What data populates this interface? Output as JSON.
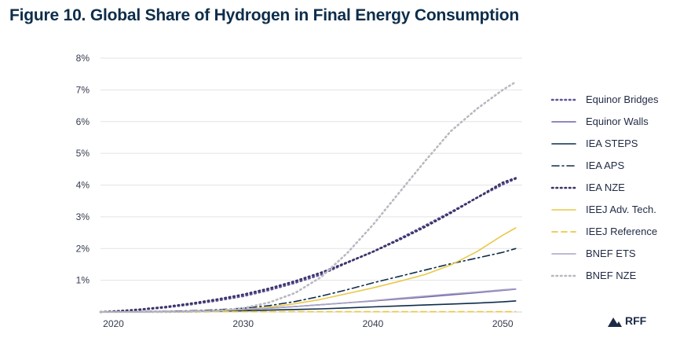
{
  "chart_data": {
    "type": "line",
    "title": "Figure 10.  Global Share of Hydrogen in Final Energy Consumption",
    "xlabel": "",
    "ylabel": "",
    "xlim": [
      2019,
      2051.5
    ],
    "ylim": [
      0,
      8
    ],
    "x_ticks": [
      2020,
      2030,
      2040,
      2050
    ],
    "y_ticks": [
      1,
      2,
      3,
      4,
      5,
      6,
      7,
      8
    ],
    "y_tick_labels": [
      "1%",
      "2%",
      "3%",
      "4%",
      "5%",
      "6%",
      "7%",
      "8%"
    ],
    "x": [
      2019,
      2020,
      2022,
      2024,
      2026,
      2028,
      2030,
      2032,
      2034,
      2036,
      2038,
      2040,
      2042,
      2044,
      2046,
      2048,
      2050,
      2051
    ],
    "series": [
      {
        "name": "Equinor Bridges",
        "color": "#5b5596",
        "style": "dot",
        "values": [
          0,
          0.02,
          0.07,
          0.14,
          0.24,
          0.36,
          0.5,
          0.69,
          0.92,
          1.18,
          1.55,
          1.9,
          2.3,
          2.72,
          3.15,
          3.6,
          4.02,
          4.2
        ]
      },
      {
        "name": "Equinor Walls",
        "color": "#6b61a8",
        "style": "solid",
        "values": [
          0,
          0,
          0.01,
          0.02,
          0.03,
          0.05,
          0.08,
          0.12,
          0.17,
          0.23,
          0.29,
          0.35,
          0.41,
          0.47,
          0.54,
          0.61,
          0.68,
          0.72
        ]
      },
      {
        "name": "IEA STEPS",
        "color": "#0d2d4a",
        "style": "solid",
        "values": [
          0,
          0,
          0,
          0.01,
          0.02,
          0.03,
          0.04,
          0.06,
          0.08,
          0.1,
          0.13,
          0.16,
          0.19,
          0.22,
          0.25,
          0.28,
          0.32,
          0.35
        ]
      },
      {
        "name": "IEA APS",
        "color": "#0d2d4a",
        "style": "dashdot",
        "values": [
          0,
          0,
          0.01,
          0.02,
          0.04,
          0.07,
          0.12,
          0.2,
          0.33,
          0.5,
          0.7,
          0.92,
          1.12,
          1.32,
          1.52,
          1.7,
          1.88,
          2.0
        ]
      },
      {
        "name": "IEA NZE",
        "color": "#3a3366",
        "style": "dot",
        "values": [
          0,
          0.02,
          0.08,
          0.16,
          0.27,
          0.4,
          0.55,
          0.74,
          0.97,
          1.24,
          1.56,
          1.9,
          2.27,
          2.68,
          3.12,
          3.6,
          4.08,
          4.22
        ]
      },
      {
        "name": "IEEJ Adv. Tech.",
        "color": "#e8c94a",
        "style": "solid",
        "values": [
          0,
          0,
          0,
          0.01,
          0.02,
          0.04,
          0.08,
          0.15,
          0.26,
          0.4,
          0.58,
          0.76,
          0.96,
          1.18,
          1.48,
          1.9,
          2.42,
          2.65
        ]
      },
      {
        "name": "IEEJ Reference",
        "color": "#e8c94a",
        "style": "dash",
        "values": [
          0,
          0,
          0,
          0,
          0,
          0.01,
          0.01,
          0.01,
          0.01,
          0.01,
          0.01,
          0.01,
          0.01,
          0.01,
          0.01,
          0.01,
          0.01,
          0.01
        ]
      },
      {
        "name": "BNEF ETS",
        "color": "#a9a4c6",
        "style": "solid",
        "values": [
          0,
          0,
          0,
          0.01,
          0.03,
          0.05,
          0.08,
          0.12,
          0.17,
          0.23,
          0.29,
          0.36,
          0.43,
          0.5,
          0.57,
          0.63,
          0.7,
          0.73
        ]
      },
      {
        "name": "BNEF NZE",
        "color": "#b8b8c2",
        "style": "dot",
        "values": [
          0,
          0,
          0,
          0,
          0.01,
          0.04,
          0.12,
          0.3,
          0.6,
          1.1,
          1.85,
          2.75,
          3.75,
          4.75,
          5.7,
          6.4,
          7.0,
          7.25
        ]
      }
    ]
  },
  "branding": {
    "logo_text": "RFF",
    "logo_color": "#1c2b45"
  }
}
